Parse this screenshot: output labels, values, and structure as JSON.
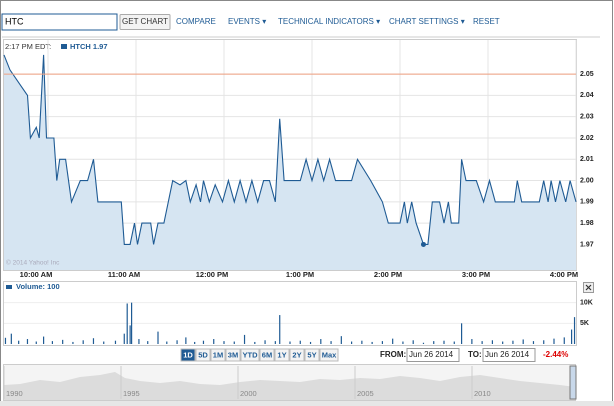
{
  "toolbar": {
    "symbol": "HTC",
    "get_chart": "GET CHART",
    "links": [
      "COMPARE",
      "EVENTS ▾",
      "TECHNICAL INDICATORS ▾",
      "CHART SETTINGS ▾",
      "RESET"
    ]
  },
  "chart_data": [
    {
      "type": "area",
      "timestamp": "2:17 PM EDT:",
      "copyright": "© 2014 Yahoo! Inc",
      "series": [
        {
          "name": "HTCH 1.97",
          "color": "#1f5b94",
          "fill": "#d6e5f2",
          "x": [
            570,
            574,
            581,
            586,
            588,
            592,
            594,
            597,
            599,
            604,
            606,
            608,
            612,
            616,
            622,
            627,
            631,
            634,
            650,
            652,
            656,
            659,
            661,
            664,
            670,
            672,
            675,
            679,
            685,
            690,
            694,
            697,
            701,
            704,
            706,
            710,
            714,
            719,
            723,
            727,
            731,
            735,
            739,
            743,
            747,
            751,
            755,
            758,
            761,
            772,
            776,
            780,
            784,
            788,
            792,
            796,
            807,
            811,
            820,
            828,
            832,
            840,
            843,
            845,
            848,
            851,
            856,
            859,
            862,
            867,
            870,
            873,
            875,
            880,
            882,
            885,
            892,
            897,
            901,
            905,
            918,
            920,
            923,
            935,
            938,
            941,
            943,
            946,
            949,
            953,
            956,
            960
          ],
          "values": [
            2.059,
            2.052,
            2.045,
            2.04,
            2.02,
            2.025,
            2.02,
            2.059,
            2.02,
            2.02,
            2.0,
            2.01,
            2.01,
            1.99,
            2.0,
            2.0,
            2.01,
            1.99,
            1.99,
            1.97,
            1.97,
            1.98,
            1.97,
            1.98,
            1.98,
            1.97,
            1.98,
            1.98,
            2.0,
            1.998,
            2.0,
            1.99,
            1.998,
            1.99,
            2.0,
            1.99,
            1.998,
            1.99,
            2.0,
            1.99,
            2.0,
            1.99,
            2.0,
            1.99,
            2.0,
            2.0,
            1.99,
            2.029,
            2.0,
            2.0,
            2.01,
            2.0,
            2.01,
            2.0,
            2.01,
            2.0,
            2.0,
            2.01,
            2.0,
            1.99,
            1.98,
            1.98,
            1.99,
            1.98,
            1.99,
            1.98,
            1.97,
            1.97,
            1.99,
            1.99,
            1.98,
            1.99,
            1.98,
            1.98,
            2.01,
            2.0,
            2.0,
            1.99,
            2.0,
            1.99,
            1.99,
            2.0,
            1.99,
            1.99,
            2.0,
            1.99,
            2.0,
            1.99,
            2.0,
            1.99,
            2.0,
            1.99
          ]
        }
      ],
      "reference_line": {
        "value": 2.05,
        "color": "#f0a080"
      },
      "marker": {
        "x": 856,
        "y": 1.97
      },
      "xlim": [
        570,
        960
      ],
      "xticks": [
        {
          "value": 600,
          "label": "10:00 AM"
        },
        {
          "value": 660,
          "label": "11:00 AM"
        },
        {
          "value": 720,
          "label": "12:00 PM"
        },
        {
          "value": 780,
          "label": "1:00 PM"
        },
        {
          "value": 840,
          "label": "2:00 PM"
        },
        {
          "value": 900,
          "label": "3:00 PM"
        },
        {
          "value": 960,
          "label": "4:00 PM"
        }
      ],
      "ylim": [
        1.958,
        2.066
      ],
      "yticks": [
        2.05,
        2.04,
        2.03,
        2.02,
        2.01,
        {
          "value": 2.0,
          "label": "2.00"
        },
        1.99,
        1.98,
        1.97
      ],
      "grid": true
    },
    {
      "type": "bar",
      "title": "Volume: 100",
      "series": [
        {
          "name": "Volume",
          "color": "#1f5b94",
          "x": [
            571,
            575,
            580,
            586,
            592,
            597,
            603,
            610,
            617,
            624,
            631,
            638,
            646,
            652,
            654,
            656,
            657,
            662,
            668,
            675,
            681,
            688,
            694,
            700,
            706,
            713,
            720,
            727,
            734,
            741,
            748,
            755,
            758,
            765,
            772,
            779,
            786,
            793,
            800,
            807,
            814,
            821,
            828,
            835,
            842,
            849,
            856,
            863,
            870,
            877,
            882,
            889,
            896,
            903,
            910,
            917,
            924,
            931,
            938,
            945,
            952,
            957,
            959
          ],
          "values": [
            1500,
            2500,
            800,
            1200,
            600,
            1800,
            700,
            1000,
            500,
            900,
            1400,
            600,
            800,
            2500,
            9800,
            4500,
            10000,
            1200,
            700,
            3000,
            600,
            900,
            1600,
            500,
            800,
            1200,
            700,
            600,
            2200,
            500,
            900,
            700,
            7000,
            600,
            800,
            500,
            1200,
            700,
            1900,
            600,
            800,
            500,
            700,
            1300,
            600,
            900,
            300,
            700,
            800,
            600,
            5000,
            1200,
            700,
            900,
            600,
            800,
            1100,
            700,
            900,
            1300,
            1600,
            3500,
            6500
          ]
        }
      ],
      "xlim": [
        570,
        960
      ],
      "ylim": [
        0,
        15000
      ],
      "yticks": [
        {
          "value": 10000,
          "label": "10K"
        },
        {
          "value": 5000,
          "label": "5K"
        }
      ]
    }
  ],
  "range_bar": {
    "buttons": [
      "1D",
      "5D",
      "1M",
      "3M",
      "YTD",
      "6M",
      "1Y",
      "2Y",
      "5Y",
      "Max"
    ],
    "from_label": "FROM:",
    "from": "Jun 26 2014",
    "to_label": "TO:",
    "to": "Jun 26 2014",
    "change": "-2.44%"
  },
  "navigator": {
    "years": [
      1990,
      1995,
      2000,
      2005,
      2010
    ]
  }
}
